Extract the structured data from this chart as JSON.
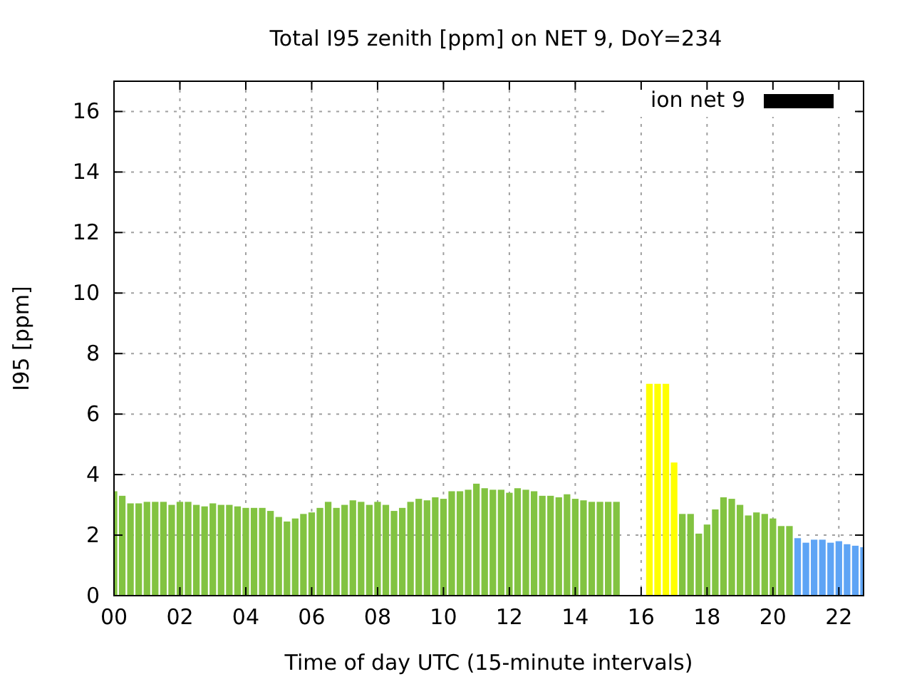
{
  "chart_data": {
    "type": "bar",
    "title": "Total I95 zenith [ppm] on NET 9, DoY=234",
    "xlabel": "Time of day UTC (15-minute intervals)",
    "ylabel": "I95 [ppm]",
    "x": [
      0,
      0.25,
      0.5,
      0.75,
      1,
      1.25,
      1.5,
      1.75,
      2,
      2.25,
      2.5,
      2.75,
      3,
      3.25,
      3.5,
      3.75,
      4,
      4.25,
      4.5,
      4.75,
      5,
      5.25,
      5.5,
      5.75,
      6,
      6.25,
      6.5,
      6.75,
      7,
      7.25,
      7.5,
      7.75,
      8,
      8.25,
      8.5,
      8.75,
      9,
      9.25,
      9.5,
      9.75,
      10,
      10.25,
      10.5,
      10.75,
      11,
      11.25,
      11.5,
      11.75,
      12,
      12.25,
      12.5,
      12.75,
      13,
      13.25,
      13.5,
      13.75,
      14,
      14.25,
      14.5,
      14.75,
      15,
      15.25,
      15.5,
      15.75,
      16,
      16.25,
      16.5,
      16.75,
      17,
      17.25,
      17.5,
      17.75,
      18,
      18.25,
      18.5,
      18.75,
      19,
      19.25,
      19.5,
      19.75,
      20,
      20.25,
      20.5,
      20.75,
      21,
      21.25,
      21.5,
      21.75,
      22,
      22.25,
      22.5,
      22.75
    ],
    "series": [
      {
        "name": "ion net 9",
        "color": "#000000",
        "values": [
          3.45,
          3.3,
          3.05,
          3.05,
          3.1,
          3.1,
          3.1,
          3.0,
          3.1,
          3.1,
          3.0,
          2.95,
          3.05,
          3.0,
          3.0,
          2.95,
          2.9,
          2.9,
          2.9,
          2.8,
          2.6,
          2.45,
          2.55,
          2.7,
          2.75,
          2.9,
          3.1,
          2.9,
          3.0,
          3.15,
          3.1,
          3.0,
          3.1,
          3.0,
          2.8,
          2.9,
          3.1,
          3.2,
          3.15,
          3.25,
          3.2,
          3.45,
          3.45,
          3.5,
          3.7,
          3.55,
          3.5,
          3.5,
          3.4,
          3.55,
          3.5,
          3.45,
          3.3,
          3.3,
          3.25,
          3.35,
          3.2,
          3.15,
          3.1,
          3.1,
          3.1,
          3.1,
          null,
          null,
          null,
          7.0,
          7.0,
          7.0,
          4.4,
          2.7,
          2.7,
          2.05,
          2.35,
          2.85,
          3.25,
          3.2,
          3.0,
          2.65,
          2.75,
          2.7,
          2.55,
          2.3,
          2.3,
          1.9,
          1.75,
          1.85,
          1.85,
          1.75,
          1.8,
          1.7,
          1.65,
          1.6
        ],
        "colors": [
          "#82c341",
          "#82c341",
          "#82c341",
          "#82c341",
          "#82c341",
          "#82c341",
          "#82c341",
          "#82c341",
          "#82c341",
          "#82c341",
          "#82c341",
          "#82c341",
          "#82c341",
          "#82c341",
          "#82c341",
          "#82c341",
          "#82c341",
          "#82c341",
          "#82c341",
          "#82c341",
          "#82c341",
          "#82c341",
          "#82c341",
          "#82c341",
          "#82c341",
          "#82c341",
          "#82c341",
          "#82c341",
          "#82c341",
          "#82c341",
          "#82c341",
          "#82c341",
          "#82c341",
          "#82c341",
          "#82c341",
          "#82c341",
          "#82c341",
          "#82c341",
          "#82c341",
          "#82c341",
          "#82c341",
          "#82c341",
          "#82c341",
          "#82c341",
          "#82c341",
          "#82c341",
          "#82c341",
          "#82c341",
          "#82c341",
          "#82c341",
          "#82c341",
          "#82c341",
          "#82c341",
          "#82c341",
          "#82c341",
          "#82c341",
          "#82c341",
          "#82c341",
          "#82c341",
          "#82c341",
          "#82c341",
          "#82c341",
          null,
          null,
          null,
          "#ffff00",
          "#ffff00",
          "#ffff00",
          "#ffff00",
          "#82c341",
          "#82c341",
          "#82c341",
          "#82c341",
          "#82c341",
          "#82c341",
          "#82c341",
          "#82c341",
          "#82c341",
          "#82c341",
          "#82c341",
          "#82c341",
          "#82c341",
          "#82c341",
          "#5ea4f5",
          "#5ea4f5",
          "#5ea4f5",
          "#5ea4f5",
          "#5ea4f5",
          "#5ea4f5",
          "#5ea4f5",
          "#5ea4f5",
          "#5ea4f5"
        ]
      }
    ],
    "xlim": [
      0,
      22.75
    ],
    "xticks": [
      {
        "value": 0,
        "label": "00"
      },
      {
        "value": 2,
        "label": "02"
      },
      {
        "value": 4,
        "label": "04"
      },
      {
        "value": 6,
        "label": "06"
      },
      {
        "value": 8,
        "label": "08"
      },
      {
        "value": 10,
        "label": "10"
      },
      {
        "value": 12,
        "label": "12"
      },
      {
        "value": 14,
        "label": "14"
      },
      {
        "value": 16,
        "label": "16"
      },
      {
        "value": 18,
        "label": "18"
      },
      {
        "value": 20,
        "label": "20"
      },
      {
        "value": 22,
        "label": "22"
      }
    ],
    "ylim": [
      0,
      17
    ],
    "yticks": [
      0,
      2,
      4,
      6,
      8,
      10,
      12,
      14,
      16
    ],
    "grid": true,
    "legend": "top right"
  }
}
